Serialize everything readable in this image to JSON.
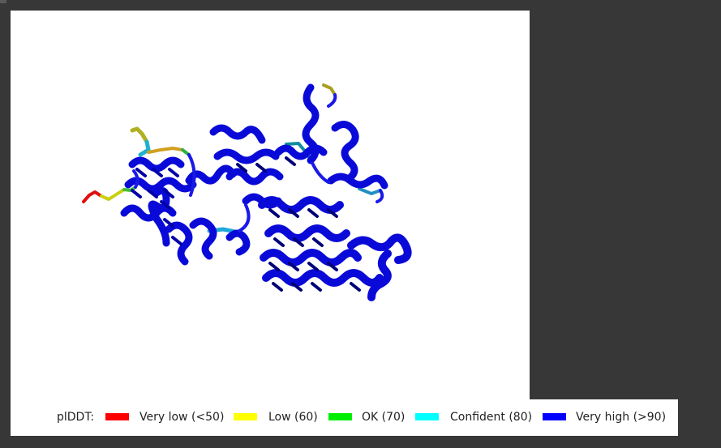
{
  "legend": {
    "title": "plDDT:",
    "items": [
      {
        "label": "Very low (<50)",
        "color": "#ff0000"
      },
      {
        "label": "Low (60)",
        "color": "#ffff00"
      },
      {
        "label": "OK (70)",
        "color": "#00ee00"
      },
      {
        "label": "Confident (80)",
        "color": "#00ffff"
      },
      {
        "label": "Very high (>90)",
        "color": "#0000ff"
      }
    ]
  },
  "colors": {
    "background": "#373737",
    "viewer_background": "#ffffff",
    "structure_main": "#0a0ad8",
    "structure_dark": "#000070"
  }
}
